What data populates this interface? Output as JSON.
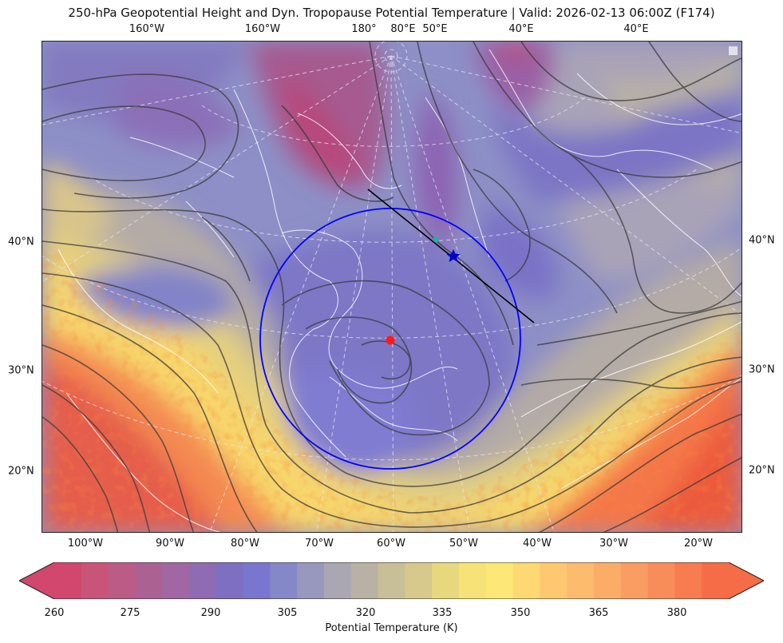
{
  "title": "250-hPa Geopotential Height and Dyn. Tropopause Potential Temperature   |  Valid: 2026-02-13 06:00Z (F174)",
  "ticks": {
    "top": [
      "160°W",
      "160°W",
      "180°",
      "80°E",
      "50°E",
      "40°E",
      "40°E"
    ],
    "bottom": [
      "100°W",
      "90°W",
      "80°W",
      "70°W",
      "60°W",
      "50°W",
      "40°W",
      "30°W",
      "20°W"
    ],
    "left": [
      "40°N",
      "30°N",
      "20°N"
    ],
    "right": [
      "40°N",
      "30°N",
      "20°N"
    ]
  },
  "colorbar": {
    "label": "Potential Temperature (K)",
    "ticks": [
      "260",
      "275",
      "290",
      "305",
      "320",
      "335",
      "350",
      "365",
      "380"
    ],
    "colors": [
      "#d2476e",
      "#c95479",
      "#bb5c86",
      "#ac6193",
      "#a067a2",
      "#8f6bb3",
      "#7e6fc2",
      "#7976cf",
      "#8588c8",
      "#9897be",
      "#aaa6b2",
      "#b9b2a4",
      "#c8bf98",
      "#d6c98b",
      "#e7d87e",
      "#f6e277",
      "#fde877",
      "#fdd873",
      "#fdc870",
      "#fcbb6d",
      "#fbad67",
      "#fa9d62",
      "#f98d5a",
      "#f77c50",
      "#f56c46"
    ]
  },
  "map": {
    "features": {
      "range_ring_color": "#0000ff",
      "center_marker_color": "#ff0000",
      "star_marker_color": "#0000cc",
      "teal_marker_color": "#16b8a0",
      "track_line_color": "#000000"
    },
    "legend_box": ""
  }
}
